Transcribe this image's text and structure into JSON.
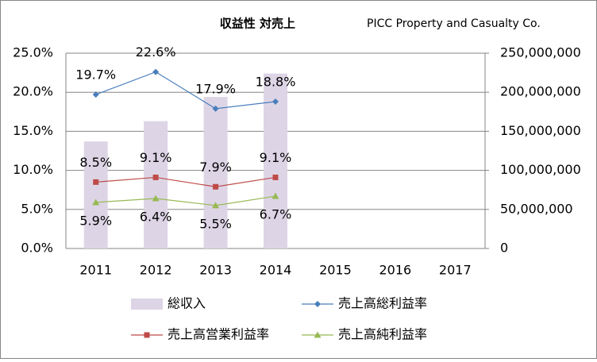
{
  "chart_data": {
    "type": "bar_line",
    "title": "収益性 対売上",
    "subtitle": "PICC Property and Casualty Co.",
    "categories": [
      "2011",
      "2012",
      "2013",
      "2014",
      "2015",
      "2016",
      "2017"
    ],
    "series": [
      {
        "name": "総収入",
        "type": "bar",
        "axis": "y2",
        "color": "#ddd5e6",
        "values": [
          137000000,
          163000000,
          194000000,
          224000000,
          null,
          null,
          null
        ]
      },
      {
        "name": "売上高総利益率",
        "type": "line",
        "marker": "diamond",
        "color": "#4a7ebb",
        "values": [
          19.7,
          22.6,
          17.9,
          18.8,
          null,
          null,
          null
        ],
        "value_labels": [
          "19.7%",
          "22.6%",
          "17.9%",
          "18.8%",
          null,
          null,
          null
        ]
      },
      {
        "name": "売上高営業利益率",
        "type": "line",
        "marker": "square",
        "color": "#be4b48",
        "values": [
          8.5,
          9.1,
          7.9,
          9.1,
          null,
          null,
          null
        ],
        "value_labels": [
          "8.5%",
          "9.1%",
          "7.9%",
          "9.1%",
          null,
          null,
          null
        ]
      },
      {
        "name": "売上高純利益率",
        "type": "line",
        "marker": "triangle",
        "color": "#98b954",
        "values": [
          5.9,
          6.4,
          5.5,
          6.7,
          null,
          null,
          null
        ],
        "value_labels": [
          "5.9%",
          "6.4%",
          "5.5%",
          "6.7%",
          null,
          null,
          null
        ]
      }
    ],
    "ylim": [
      0,
      25
    ],
    "yticks": [
      {
        "value": 0,
        "label": "0.0%"
      },
      {
        "value": 5,
        "label": "5.0%"
      },
      {
        "value": 10,
        "label": "10.0%"
      },
      {
        "value": 15,
        "label": "15.0%"
      },
      {
        "value": 20,
        "label": "20.0%"
      },
      {
        "value": 25,
        "label": "25.0%"
      }
    ],
    "y2lim": [
      0,
      250000000
    ],
    "y2ticks": [
      0,
      {
        "value": 50000000,
        "label": "50,000,000"
      },
      {
        "value": 100000000,
        "label": "100,000,000"
      },
      {
        "value": 150000000,
        "label": "150,000,000"
      },
      {
        "value": 200000000,
        "label": "200,000,000"
      },
      {
        "value": 250000000,
        "label": "250,000,000"
      }
    ],
    "grid": true
  }
}
